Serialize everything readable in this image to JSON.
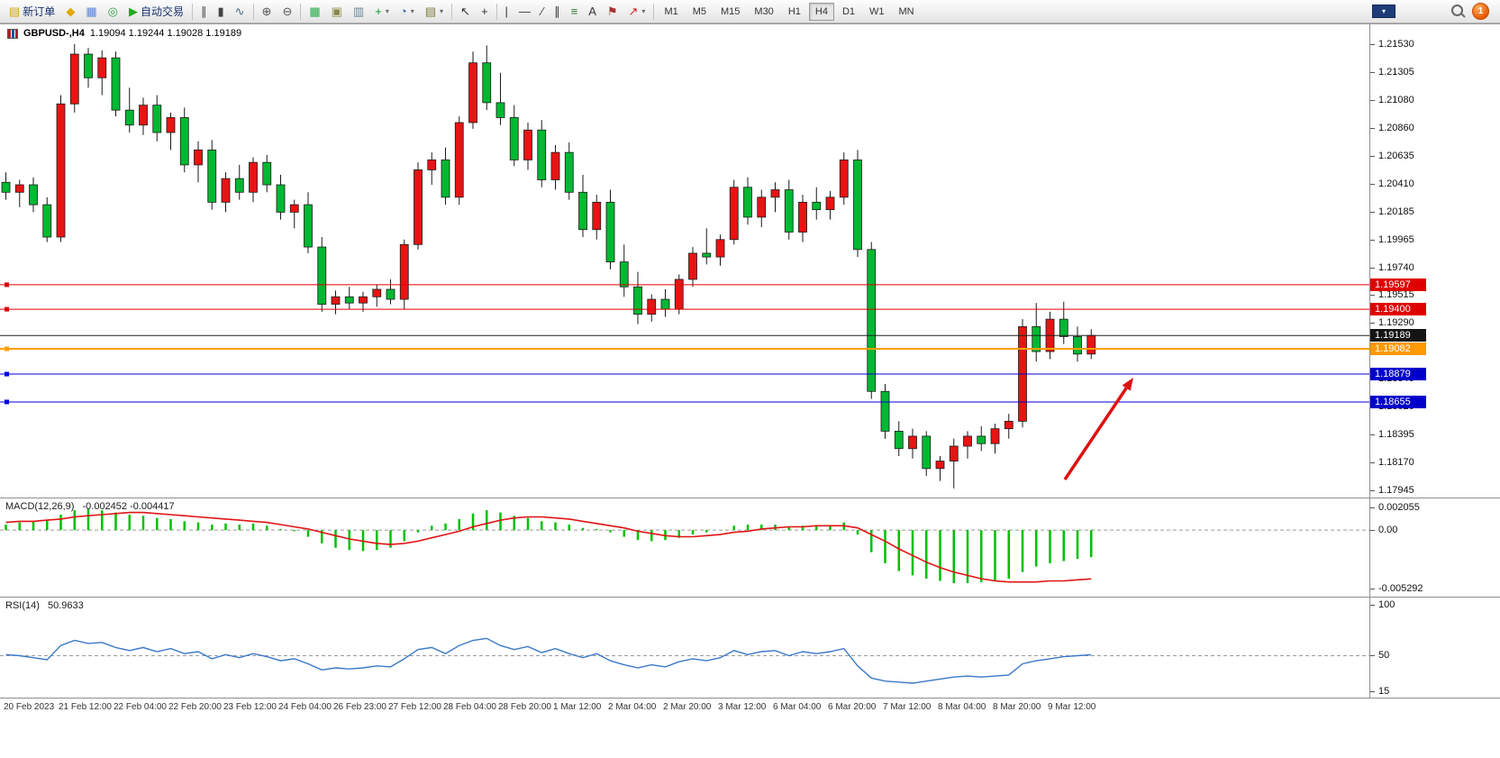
{
  "toolbar": {
    "notification_count": "1",
    "timeframes": [
      "M1",
      "M5",
      "M15",
      "M30",
      "H1",
      "H4",
      "D1",
      "W1",
      "MN"
    ],
    "active_timeframe": "H4",
    "items": [
      {
        "name": "new-order-button",
        "label": "新订单",
        "glyph": "▤",
        "color": "#d4a017"
      },
      {
        "name": "market-watch-icon",
        "glyph": "◆",
        "color": "#e0a800"
      },
      {
        "name": "data-window-icon",
        "glyph": "▦",
        "color": "#5588cc"
      },
      {
        "name": "community-icon",
        "glyph": "◎",
        "color": "#2e9e44"
      },
      {
        "name": "auto-trading-button",
        "label": "自动交易",
        "glyph": "▶",
        "color": "#22aa22"
      },
      {
        "sep": true
      },
      {
        "name": "bars-chart-button",
        "glyph": "∥",
        "color": "#444444"
      },
      {
        "name": "candles-chart-button",
        "glyph": "▮",
        "color": "#444444"
      },
      {
        "name": "line-chart-button",
        "glyph": "∿",
        "color": "#446688"
      },
      {
        "sep": true
      },
      {
        "name": "zoom-in-button",
        "glyph": "⊕",
        "color": "#555555"
      },
      {
        "name": "zoom-out-button",
        "glyph": "⊖",
        "color": "#555555"
      },
      {
        "sep": true
      },
      {
        "name": "tile-windows-button",
        "glyph": "▦",
        "color": "#22aa44"
      },
      {
        "name": "cascade-windows-button",
        "glyph": "▣",
        "color": "#88884a"
      },
      {
        "name": "arrange-windows-button",
        "glyph": "▥",
        "color": "#668899"
      },
      {
        "name": "indicators-button",
        "glyph": "+",
        "color": "#00a020",
        "dropdown": true
      },
      {
        "name": "periods-button",
        "glyph": "◔",
        "color": "#2d5fa6",
        "dropdown": true
      },
      {
        "name": "templates-button",
        "glyph": "▤",
        "color": "#7a7a3a",
        "dropdown": true
      },
      {
        "sep": true
      },
      {
        "name": "cursor-button",
        "glyph": "↖",
        "color": "#333333"
      },
      {
        "name": "crosshair-button",
        "glyph": "+",
        "color": "#333333"
      },
      {
        "sep": true
      },
      {
        "name": "vertical-line-button",
        "glyph": "|",
        "color": "#333333"
      },
      {
        "name": "horizontal-line-button",
        "glyph": "—",
        "color": "#333333"
      },
      {
        "name": "trendline-button",
        "glyph": "∕",
        "color": "#333333"
      },
      {
        "name": "channel-button",
        "glyph": "∥",
        "color": "#333333"
      },
      {
        "name": "fibonacci-button",
        "glyph": "≡",
        "color": "#2e7d32"
      },
      {
        "name": "text-button",
        "glyph": "A",
        "color": "#333333"
      },
      {
        "name": "label-button",
        "glyph": "⚑",
        "color": "#aa3333"
      },
      {
        "name": "arrows-button",
        "glyph": "↗",
        "color": "#cc2222",
        "dropdown": true
      },
      {
        "sep": true
      }
    ]
  },
  "chart": {
    "symbol_period": "GBPUSD-,H4",
    "ohlc": "1.19094 1.19244 1.19028 1.19189"
  },
  "price_axis": {
    "ticks": [
      "1.21530",
      "1.21305",
      "1.21080",
      "1.20860",
      "1.20635",
      "1.20410",
      "1.20185",
      "1.19965",
      "1.19740",
      "1.19515",
      "1.19290",
      "1.19065",
      "1.18840",
      "1.18620",
      "1.18395",
      "1.18170",
      "1.17945"
    ],
    "badges": [
      {
        "text": "1.19597",
        "bg": "#e00000"
      },
      {
        "text": "1.19400",
        "bg": "#e00000"
      },
      {
        "text": "1.19189",
        "bg": "#141414"
      },
      {
        "text": "1.19082",
        "bg": "#ff9900"
      },
      {
        "text": "1.18879",
        "bg": "#0000cc"
      },
      {
        "text": "1.18655",
        "bg": "#0000cc"
      }
    ]
  },
  "chart_data": {
    "type": "candlestick",
    "symbol": "GBPUSD-",
    "timeframe": "H4",
    "current_ohlc": {
      "open": 1.19094,
      "high": 1.19244,
      "low": 1.19028,
      "close": 1.19189
    },
    "colors": {
      "bull": "#e81414",
      "bear": "#00b832",
      "outline": "#1a1a1a",
      "macd_hist": "#00c000",
      "macd_signal": "#e01414",
      "rsi_line": "#3a78c8",
      "level_red": "#e00000",
      "level_blue": "#0000dd",
      "level_orange": "#ffa000",
      "level_bid": "#202020",
      "arrow": "#e01010"
    },
    "price_range": {
      "top_tick": 1.2153,
      "bottom_tick": 1.17945
    },
    "levels": [
      {
        "price": 1.19597,
        "color": "#e00000",
        "width": 1
      },
      {
        "price": 1.194,
        "color": "#e00000",
        "width": 1
      },
      {
        "price": 1.19189,
        "color": "#202020",
        "width": 1,
        "bid": true
      },
      {
        "price": 1.19082,
        "color": "#ffa000",
        "width": 2
      },
      {
        "price": 1.18879,
        "color": "#0000dd",
        "width": 1
      },
      {
        "price": 1.18655,
        "color": "#0000dd",
        "width": 1
      }
    ],
    "time_labels": [
      "20 Feb 2023",
      "21 Feb 12:00",
      "22 Feb 04:00",
      "22 Feb 20:00",
      "23 Feb 12:00",
      "24 Feb 04:00",
      "26 Feb 23:00",
      "27 Feb 12:00",
      "28 Feb 04:00",
      "28 Feb 20:00",
      "1 Mar 12:00",
      "2 Mar 04:00",
      "2 Mar 20:00",
      "3 Mar 12:00",
      "6 Mar 04:00",
      "6 Mar 20:00",
      "7 Mar 12:00",
      "8 Mar 04:00",
      "8 Mar 20:00",
      "9 Mar 12:00"
    ],
    "candles": [
      [
        1.2042,
        1.205,
        1.2028,
        1.2034
      ],
      [
        1.2034,
        1.2044,
        1.2022,
        1.204
      ],
      [
        1.204,
        1.2046,
        1.2018,
        1.2024
      ],
      [
        1.2024,
        1.203,
        1.1994,
        1.1998
      ],
      [
        1.1998,
        1.2112,
        1.1994,
        1.2105
      ],
      [
        1.2105,
        1.2153,
        1.2098,
        1.2145
      ],
      [
        1.2145,
        1.215,
        1.2118,
        1.2126
      ],
      [
        1.2126,
        1.2148,
        1.2112,
        1.2142
      ],
      [
        1.2142,
        1.2147,
        1.2095,
        1.21
      ],
      [
        1.21,
        1.2118,
        1.2082,
        1.2088
      ],
      [
        1.2088,
        1.211,
        1.208,
        1.2104
      ],
      [
        1.2104,
        1.2112,
        1.2075,
        1.2082
      ],
      [
        1.2082,
        1.2098,
        1.2068,
        1.2094
      ],
      [
        1.2094,
        1.2102,
        1.205,
        1.2056
      ],
      [
        1.2056,
        1.2075,
        1.2042,
        1.2068
      ],
      [
        1.2068,
        1.2076,
        1.202,
        1.2026
      ],
      [
        1.2026,
        1.205,
        1.2018,
        1.2045
      ],
      [
        1.2045,
        1.2056,
        1.2028,
        1.2034
      ],
      [
        1.2034,
        1.2062,
        1.2026,
        1.2058
      ],
      [
        1.2058,
        1.2064,
        1.2034,
        1.204
      ],
      [
        1.204,
        1.2048,
        1.2012,
        1.2018
      ],
      [
        1.2018,
        1.2028,
        1.2005,
        1.2024
      ],
      [
        1.2024,
        1.2034,
        1.1985,
        1.199
      ],
      [
        1.199,
        1.1998,
        1.1938,
        1.1944
      ],
      [
        1.1944,
        1.1955,
        1.1936,
        1.195
      ],
      [
        1.195,
        1.1958,
        1.194,
        1.1945
      ],
      [
        1.1945,
        1.1954,
        1.1938,
        1.195
      ],
      [
        1.195,
        1.196,
        1.1942,
        1.1956
      ],
      [
        1.1956,
        1.1964,
        1.1944,
        1.1948
      ],
      [
        1.1948,
        1.1996,
        1.194,
        1.1992
      ],
      [
        1.1992,
        1.2058,
        1.1988,
        1.2052
      ],
      [
        1.2052,
        1.2066,
        1.204,
        1.206
      ],
      [
        1.206,
        1.207,
        1.2024,
        1.203
      ],
      [
        1.203,
        1.2095,
        1.2024,
        1.209
      ],
      [
        1.209,
        1.2147,
        1.2085,
        1.2138
      ],
      [
        1.2138,
        1.2152,
        1.21,
        1.2106
      ],
      [
        1.2106,
        1.213,
        1.2088,
        1.2094
      ],
      [
        1.2094,
        1.2104,
        1.2055,
        1.206
      ],
      [
        1.206,
        1.209,
        1.2052,
        1.2084
      ],
      [
        1.2084,
        1.2092,
        1.2038,
        1.2044
      ],
      [
        1.2044,
        1.2072,
        1.2036,
        1.2066
      ],
      [
        1.2066,
        1.2074,
        1.2028,
        1.2034
      ],
      [
        1.2034,
        1.2048,
        1.1998,
        1.2004
      ],
      [
        1.2004,
        1.2032,
        1.1996,
        1.2026
      ],
      [
        1.2026,
        1.2036,
        1.1972,
        1.1978
      ],
      [
        1.1978,
        1.1992,
        1.195,
        1.1958
      ],
      [
        1.1958,
        1.197,
        1.1928,
        1.1936
      ],
      [
        1.1936,
        1.1952,
        1.193,
        1.1948
      ],
      [
        1.1948,
        1.1956,
        1.1934,
        1.194
      ],
      [
        1.194,
        1.1968,
        1.1936,
        1.1964
      ],
      [
        1.1964,
        1.199,
        1.1958,
        1.1985
      ],
      [
        1.1985,
        1.2005,
        1.1976,
        1.1982
      ],
      [
        1.1982,
        1.2,
        1.1975,
        1.1996
      ],
      [
        1.1996,
        1.2044,
        1.1992,
        1.2038
      ],
      [
        1.2038,
        1.2046,
        1.2008,
        1.2014
      ],
      [
        1.2014,
        1.2036,
        1.2006,
        1.203
      ],
      [
        1.203,
        1.2042,
        1.2018,
        1.2036
      ],
      [
        1.2036,
        1.2044,
        1.1996,
        1.2002
      ],
      [
        1.2002,
        1.2032,
        1.1994,
        1.2026
      ],
      [
        1.2026,
        1.2038,
        1.2012,
        1.202
      ],
      [
        1.202,
        1.2035,
        1.2012,
        1.203
      ],
      [
        1.203,
        1.2066,
        1.2024,
        1.206
      ],
      [
        1.206,
        1.2068,
        1.1982,
        1.1988
      ],
      [
        1.1988,
        1.1994,
        1.1868,
        1.1874
      ],
      [
        1.1874,
        1.188,
        1.1836,
        1.1842
      ],
      [
        1.1842,
        1.185,
        1.1822,
        1.1828
      ],
      [
        1.1828,
        1.1844,
        1.182,
        1.1838
      ],
      [
        1.1838,
        1.1842,
        1.1806,
        1.1812
      ],
      [
        1.1812,
        1.1822,
        1.1802,
        1.1818
      ],
      [
        1.1818,
        1.1836,
        1.1796,
        1.183
      ],
      [
        1.183,
        1.1842,
        1.182,
        1.1838
      ],
      [
        1.1838,
        1.1846,
        1.1826,
        1.1832
      ],
      [
        1.1832,
        1.1848,
        1.1824,
        1.1844
      ],
      [
        1.1844,
        1.1856,
        1.1836,
        1.185
      ],
      [
        1.185,
        1.1932,
        1.1845,
        1.1926
      ],
      [
        1.1926,
        1.1945,
        1.1898,
        1.1906
      ],
      [
        1.1906,
        1.1938,
        1.19,
        1.1932
      ],
      [
        1.1932,
        1.1946,
        1.1912,
        1.1918
      ],
      [
        1.1918,
        1.1926,
        1.1898,
        1.1904
      ],
      [
        1.1904,
        1.1924,
        1.19,
        1.19189
      ]
    ],
    "indicators": {
      "macd": {
        "label": "MACD(12,26,9)",
        "values_text": "-0.002452 -0.004417",
        "scale": [
          "0.002055",
          "0.00",
          "-0.005292"
        ],
        "scale_values": [
          0.002055,
          0,
          -0.005292
        ],
        "histogram": [
          0.0005,
          0.0007,
          0.0008,
          0.0009,
          0.0014,
          0.0018,
          0.0019,
          0.0018,
          0.0016,
          0.0014,
          0.0013,
          0.0011,
          0.001,
          0.0008,
          0.0007,
          0.0005,
          0.0006,
          0.0005,
          0.0006,
          0.0004,
          0.0001,
          -0.0001,
          -0.0006,
          -0.0012,
          -0.0016,
          -0.0018,
          -0.0019,
          -0.0018,
          -0.0016,
          -0.001,
          -0.0002,
          0.0004,
          0.0006,
          0.001,
          0.0015,
          0.0018,
          0.0016,
          0.0013,
          0.0011,
          0.0008,
          0.0007,
          0.0005,
          0.0002,
          0.0001,
          -0.0002,
          -0.0006,
          -0.0009,
          -0.001,
          -0.0009,
          -0.0007,
          -0.0004,
          -0.0002,
          0.0,
          0.0004,
          0.0005,
          0.0005,
          0.0005,
          0.0003,
          0.0004,
          0.0004,
          0.0004,
          0.0007,
          -0.0004,
          -0.002,
          -0.003,
          -0.0037,
          -0.0041,
          -0.0044,
          -0.0046,
          -0.0048,
          -0.0048,
          -0.0047,
          -0.0046,
          -0.0044,
          -0.0038,
          -0.0033,
          -0.003,
          -0.0028,
          -0.0026,
          -0.002452
        ],
        "signal": [
          0.0007,
          0.0008,
          0.0008,
          0.0009,
          0.001,
          0.0012,
          0.0013,
          0.0014,
          0.0015,
          0.0016,
          0.0016,
          0.0015,
          0.0014,
          0.0013,
          0.0012,
          0.0011,
          0.001,
          0.0009,
          0.0008,
          0.0007,
          0.0005,
          0.0003,
          0.0001,
          -0.0002,
          -0.0005,
          -0.0008,
          -0.001,
          -0.0012,
          -0.0013,
          -0.0012,
          -0.001,
          -0.0007,
          -0.0004,
          -0.0001,
          0.0003,
          0.0006,
          0.0009,
          0.0011,
          0.0012,
          0.0012,
          0.0011,
          0.001,
          0.0008,
          0.0006,
          0.0004,
          0.0002,
          -0.0001,
          -0.0003,
          -0.0005,
          -0.0006,
          -0.0006,
          -0.0005,
          -0.0004,
          -0.0002,
          -0.0001,
          0.0001,
          0.0002,
          0.0003,
          0.0003,
          0.0004,
          0.0004,
          0.0004,
          0.0002,
          -0.0004,
          -0.001,
          -0.0017,
          -0.0023,
          -0.0029,
          -0.0034,
          -0.0038,
          -0.0041,
          -0.0044,
          -0.0046,
          -0.0047,
          -0.0047,
          -0.0047,
          -0.0046,
          -0.0046,
          -0.0045,
          -0.004417
        ]
      },
      "rsi": {
        "label": "RSI(14)",
        "value_text": "50.9633",
        "scale": [
          "100",
          "50",
          "15"
        ],
        "scale_values": [
          100,
          50,
          15
        ],
        "series": [
          51,
          50,
          48,
          46,
          60,
          65,
          62,
          63,
          58,
          55,
          58,
          54,
          57,
          52,
          54,
          47,
          51,
          48,
          52,
          49,
          45,
          47,
          42,
          36,
          38,
          37,
          38,
          40,
          39,
          47,
          56,
          58,
          52,
          60,
          65,
          67,
          60,
          56,
          59,
          53,
          57,
          52,
          48,
          52,
          45,
          41,
          38,
          41,
          39,
          44,
          47,
          45,
          48,
          55,
          51,
          54,
          55,
          50,
          54,
          52,
          54,
          57,
          40,
          28,
          25,
          24,
          23,
          25,
          27,
          29,
          30,
          29,
          30,
          31,
          42,
          45,
          47,
          49,
          50,
          50.9633
        ]
      }
    },
    "arrow_annotation": {
      "color": "#e01010",
      "from": [
        1182,
        505
      ],
      "to": [
        1258,
        392
      ]
    }
  }
}
